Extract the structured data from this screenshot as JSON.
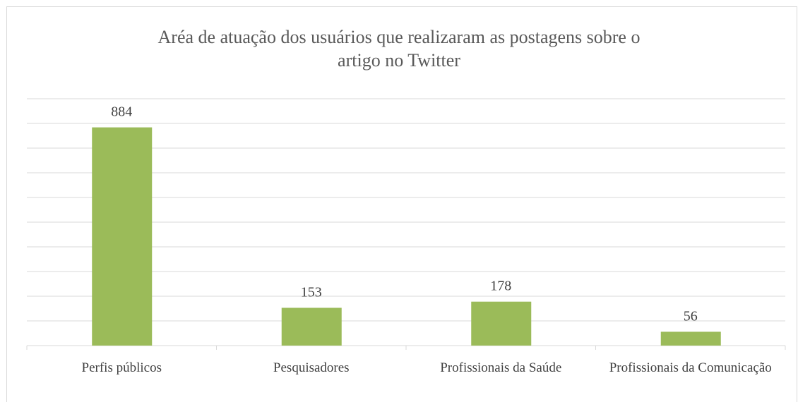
{
  "chart_data": {
    "type": "bar",
    "title": "Aréa de atuação dos usuários que realizaram as postagens sobre o artigo no Twitter",
    "categories": [
      "Perfis públicos",
      "Pesquisadores",
      "Profissionais da Saúde",
      "Profissionais da Comunicação"
    ],
    "values": [
      884,
      153,
      178,
      56
    ],
    "color": "#9bbb59",
    "ylim": [
      0,
      1000
    ],
    "yticks": [
      0,
      100,
      200,
      300,
      400,
      500,
      600,
      700,
      800,
      900,
      1000
    ],
    "grid": true
  }
}
